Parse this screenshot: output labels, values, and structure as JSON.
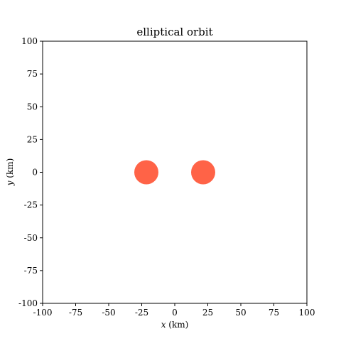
{
  "chart_data": {
    "type": "scatter",
    "title": "elliptical orbit",
    "xlabel_var": "x",
    "xlabel_unit": " (km)",
    "ylabel_var": "y",
    "ylabel_unit": " (km)",
    "xlim": [
      -100,
      100
    ],
    "ylim": [
      -100,
      100
    ],
    "xticks": [
      -100,
      -75,
      -50,
      -25,
      0,
      25,
      50,
      75,
      100
    ],
    "yticks": [
      -100,
      -75,
      -50,
      -25,
      0,
      25,
      50,
      75,
      100
    ],
    "grid": false,
    "points": [
      {
        "x": -21.5,
        "y": 0,
        "color": "#ff6347"
      },
      {
        "x": 21.5,
        "y": 0,
        "color": "#ff6347"
      }
    ]
  }
}
